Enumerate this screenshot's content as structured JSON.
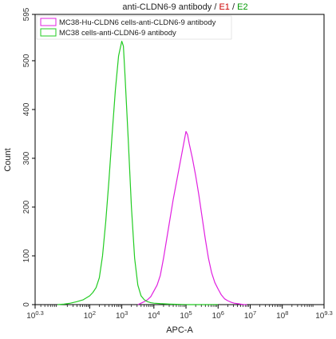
{
  "chart_data": {
    "type": "line",
    "title": {
      "main": "anti-CLDN6-9 antibody",
      "sep1": " / ",
      "e1": "E1",
      "sep2": " / ",
      "e2": "E2",
      "e1_color": "#cc0000",
      "e2_color": "#009900"
    },
    "xlabel": "APC-A",
    "ylabel": "Count",
    "x_scale": "log10",
    "xlim": [
      0.3,
      9.3
    ],
    "ylim": [
      0,
      595
    ],
    "x_ticks": [
      {
        "exp": 0.3,
        "base": "10",
        "sup": "0.3"
      },
      {
        "exp": 2,
        "base": "10",
        "sup": "2"
      },
      {
        "exp": 3,
        "base": "10",
        "sup": "3"
      },
      {
        "exp": 4,
        "base": "10",
        "sup": "4"
      },
      {
        "exp": 5,
        "base": "10",
        "sup": "5"
      },
      {
        "exp": 6,
        "base": "10",
        "sup": "6"
      },
      {
        "exp": 7,
        "base": "10",
        "sup": "7"
      },
      {
        "exp": 8,
        "base": "10",
        "sup": "8"
      },
      {
        "exp": 9.3,
        "base": "10",
        "sup": "9.3"
      }
    ],
    "y_ticks": [
      0,
      100,
      200,
      300,
      400,
      500,
      595
    ],
    "grid": false,
    "legend_position": "top-left",
    "series": [
      {
        "name": "MC38-Hu-CLDN6 cells-anti-CLDN6-9 antibody",
        "color": "#e020e0",
        "log10_x": [
          3.5,
          3.6,
          3.7,
          3.8,
          3.9,
          4.0,
          4.1,
          4.2,
          4.3,
          4.4,
          4.5,
          4.6,
          4.7,
          4.8,
          4.9,
          5.0,
          5.05,
          5.1,
          5.2,
          5.3,
          5.4,
          5.5,
          5.6,
          5.7,
          5.8,
          5.9,
          6.0,
          6.1,
          6.2,
          6.3,
          6.4,
          6.5,
          6.6,
          6.7,
          6.8,
          6.9
        ],
        "counts": [
          0,
          3,
          6,
          10,
          16,
          28,
          40,
          60,
          95,
          135,
          175,
          215,
          250,
          285,
          320,
          355,
          348,
          330,
          300,
          265,
          225,
          180,
          135,
          95,
          65,
          45,
          32,
          20,
          12,
          8,
          5,
          3,
          2,
          1,
          0,
          0
        ]
      },
      {
        "name": "MC38 cells-anti-CLDN6-9 antibody",
        "color": "#22cc22",
        "log10_x": [
          1.0,
          1.2,
          1.4,
          1.6,
          1.8,
          2.0,
          2.1,
          2.2,
          2.3,
          2.4,
          2.5,
          2.6,
          2.7,
          2.8,
          2.9,
          3.0,
          3.05,
          3.1,
          3.2,
          3.3,
          3.4,
          3.5,
          3.6,
          3.7,
          3.8,
          3.9,
          4.0,
          4.2,
          4.5,
          5.0,
          5.5,
          6.0
        ],
        "counts": [
          0,
          1,
          3,
          6,
          10,
          18,
          25,
          35,
          55,
          100,
          170,
          255,
          350,
          440,
          510,
          540,
          530,
          470,
          340,
          200,
          95,
          40,
          18,
          10,
          6,
          4,
          3,
          2,
          1,
          0,
          0,
          0
        ]
      }
    ]
  }
}
